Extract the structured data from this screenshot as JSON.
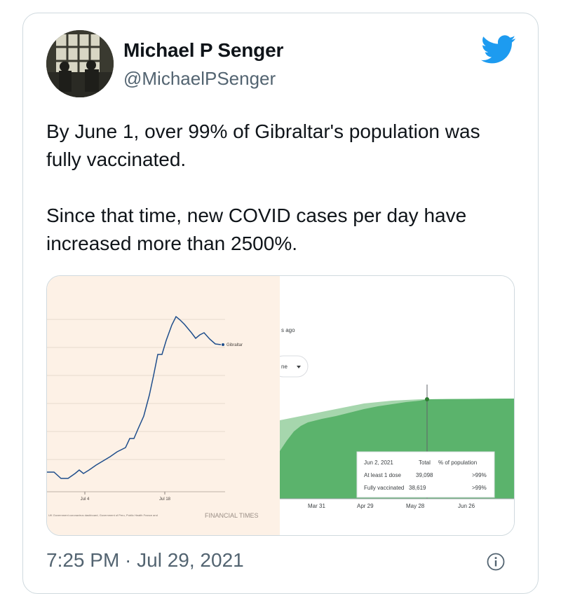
{
  "tweet": {
    "author_name": "Michael P Senger",
    "author_handle": "@MichaelPSenger",
    "text_line1": "By June 1, over 99% of Gibraltar's population was fully vaccinated.",
    "text_line2": "Since that time, new COVID cases per day have increased more than 2500%.",
    "timestamp": "7:25 PM · Jul 29, 2021",
    "brand_color": "#1d9bf0"
  },
  "media": {
    "ft_chart": {
      "series_label": "Gibraltar",
      "x_tick_1": "Jul 4",
      "x_tick_2": "Jul 18",
      "source_note": "UK Government coronavirus dashboard, Government of Peru, Public Health France and",
      "brand": "FINANCIAL TIMES",
      "line_color": "#1f4e8c",
      "background": "#fdf1e6"
    },
    "vax_chart": {
      "header_fragment": "s ago",
      "dropdown_fragment": "ne",
      "x_ticks": [
        "Mar 31",
        "Apr 29",
        "May 28",
        "Jun 26"
      ],
      "tooltip": {
        "date": "Jun 2, 2021",
        "col_total": "Total",
        "col_pct": "% of population",
        "row1_label": "At least 1 dose",
        "row1_total": "39,098",
        "row1_pct": ">99%",
        "row2_label": "Fully vaccinated",
        "row2_total": "38,619",
        "row2_pct": ">99%"
      },
      "dark_green": "#5bb36c",
      "light_green": "#a6d6ad"
    }
  }
}
